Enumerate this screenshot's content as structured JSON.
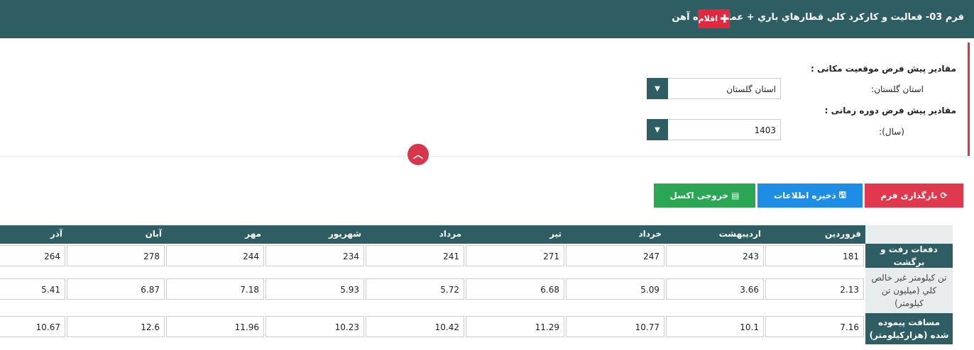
{
  "header": {
    "title": "فرم 03- فعاليت و كاركرد كلي قطارهاي باري + عمليات-راه آهن",
    "action_label": "اقلام"
  },
  "defaults": {
    "location_heading": "مقادیر پیش فرض موقعیت مکانی :",
    "province_label": "استان گلستان:",
    "province_value": "استان گلستان",
    "period_heading": "مقادیر پیش فرض دوره زمانی :",
    "year_label": "(سال):",
    "year_value": "1403"
  },
  "toolbar": {
    "reload_label": "بارگذاری فرم",
    "save_label": "ذخیره اطلاعات",
    "excel_label": "خروجی اکسل"
  },
  "table": {
    "columns": [
      "فروردین",
      "اردیبهشت",
      "خرداد",
      "تیر",
      "مرداد",
      "شهریور",
      "مهر",
      "آبان",
      "آذر"
    ],
    "rows": [
      {
        "label": "دفعات رفت و برگشت",
        "values": [
          "181",
          "243",
          "247",
          "271",
          "241",
          "234",
          "244",
          "278",
          "264"
        ]
      },
      {
        "label": "تن كيلومتر غير خالص كلي (ميليون تن كيلومتر)",
        "values": [
          "2.13",
          "3.66",
          "5.09",
          "6.68",
          "5.72",
          "5.93",
          "7.18",
          "6.87",
          "5.41"
        ]
      },
      {
        "label": "مسافت پيموده شده (هزاركيلومتر)",
        "values": [
          "7.16",
          "10.1",
          "10.77",
          "11.29",
          "10.42",
          "10.23",
          "11.96",
          "12.6",
          "10.67"
        ]
      }
    ]
  },
  "icons": {
    "plus": "plus-icon",
    "dropdown": "caret-down-icon",
    "collapse": "chevron-up-icon",
    "reload": "refresh-icon",
    "save": "floppy-icon",
    "excel": "excel-file-icon"
  }
}
